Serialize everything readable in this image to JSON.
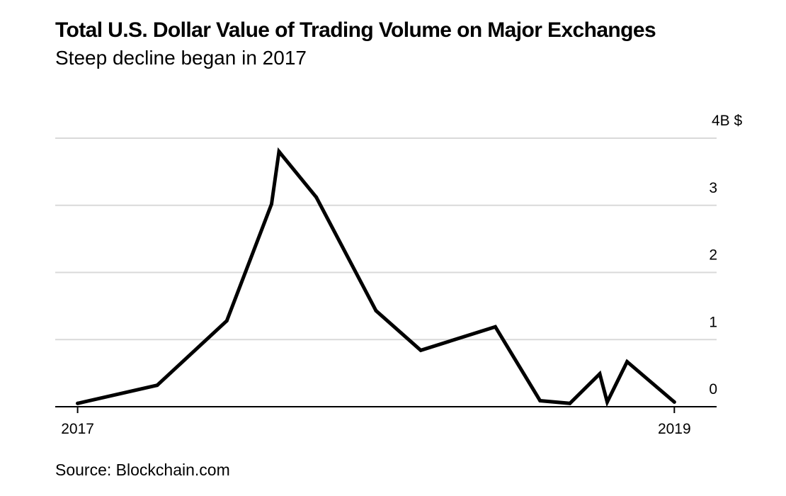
{
  "chart_data": {
    "type": "line",
    "title": "Total U.S. Dollar Value of Trading Volume on Major Exchanges",
    "subtitle": "Steep decline began in 2017",
    "source": "Source: Blockchain.com",
    "xlabel": "",
    "ylabel": "",
    "y_unit_label": "4B $",
    "y_ticks": [
      0,
      1,
      2,
      3,
      4
    ],
    "y_tick_labels": [
      "0",
      "1",
      "2",
      "3",
      "4B $"
    ],
    "ylim": [
      0,
      4
    ],
    "x_tick_labels": [
      "2017",
      "2019"
    ],
    "x_tick_values": [
      0,
      24
    ],
    "xlim": [
      -0.9,
      25.7
    ],
    "grid": true,
    "series": [
      {
        "name": "Trading volume",
        "x": [
          0,
          3.2,
          6.0,
          7.8,
          8.1,
          9.6,
          12.0,
          13.8,
          16.8,
          18.6,
          19.8,
          21.0,
          21.3,
          22.1,
          24.0
        ],
        "values": [
          0.05,
          0.32,
          1.28,
          3.02,
          3.8,
          3.12,
          1.43,
          0.84,
          1.19,
          0.09,
          0.05,
          0.49,
          0.07,
          0.67,
          0.07
        ]
      }
    ]
  }
}
